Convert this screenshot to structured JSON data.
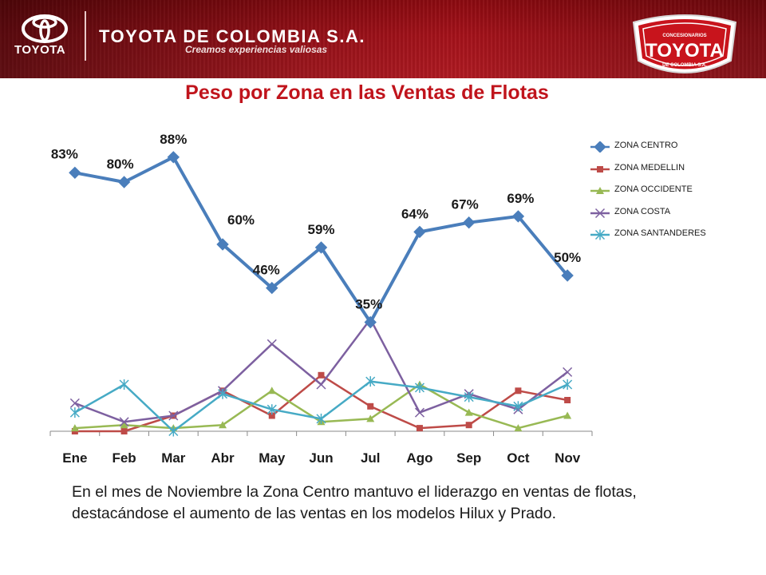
{
  "header": {
    "logo_word": "TOYOTA",
    "company": "TOYOTA DE COLOMBIA S.A.",
    "tagline": "Creamos experiencias valiosas",
    "badge_top": "CONCESIONARIOS",
    "badge_main": "TOYOTA",
    "badge_sub": "DE COLOMBIA S.A.",
    "accent_color": "#b01a22"
  },
  "title": "Peso por Zona en las Ventas de Flotas",
  "chart_data": {
    "type": "line",
    "title": "Peso por Zona en las Ventas de Flotas",
    "categories": [
      "Ene",
      "Feb",
      "Mar",
      "Abr",
      "May",
      "Jun",
      "Jul",
      "Ago",
      "Sep",
      "Oct",
      "Nov"
    ],
    "ylim": [
      0,
      100
    ],
    "grid": false,
    "legend": "right",
    "series": [
      {
        "name": "ZONA CENTRO",
        "color": "#4a7ebb",
        "marker": "diamond",
        "values": [
          83,
          80,
          88,
          60,
          46,
          59,
          35,
          64,
          67,
          69,
          50
        ],
        "labels": [
          "83%",
          "80%",
          "88%",
          "60%",
          "46%",
          "59%",
          "35%",
          "64%",
          "67%",
          "69%",
          "50%"
        ]
      },
      {
        "name": "ZONA MEDELLIN",
        "color": "#be4b48",
        "marker": "square",
        "values": [
          0,
          0,
          5,
          13,
          5,
          18,
          8,
          1,
          2,
          13,
          10
        ]
      },
      {
        "name": "ZONA OCCIDENTE",
        "color": "#98b954",
        "marker": "triangle",
        "values": [
          1,
          2,
          1,
          2,
          13,
          3,
          4,
          15,
          6,
          1,
          5
        ]
      },
      {
        "name": "ZONA COSTA",
        "color": "#7d60a0",
        "marker": "x",
        "values": [
          9,
          3,
          5,
          13,
          28,
          15,
          36,
          6,
          12,
          7,
          19
        ]
      },
      {
        "name": "ZONA SANTANDERES",
        "color": "#46aac5",
        "marker": "star",
        "values": [
          6,
          15,
          0,
          12,
          7,
          4,
          16,
          14,
          11,
          8,
          15
        ]
      }
    ]
  },
  "note": "En el mes de  Noviembre  la Zona Centro mantuvo el liderazgo en ventas de flotas, destacándose el aumento de las ventas en  los modelos  Hilux y Prado."
}
